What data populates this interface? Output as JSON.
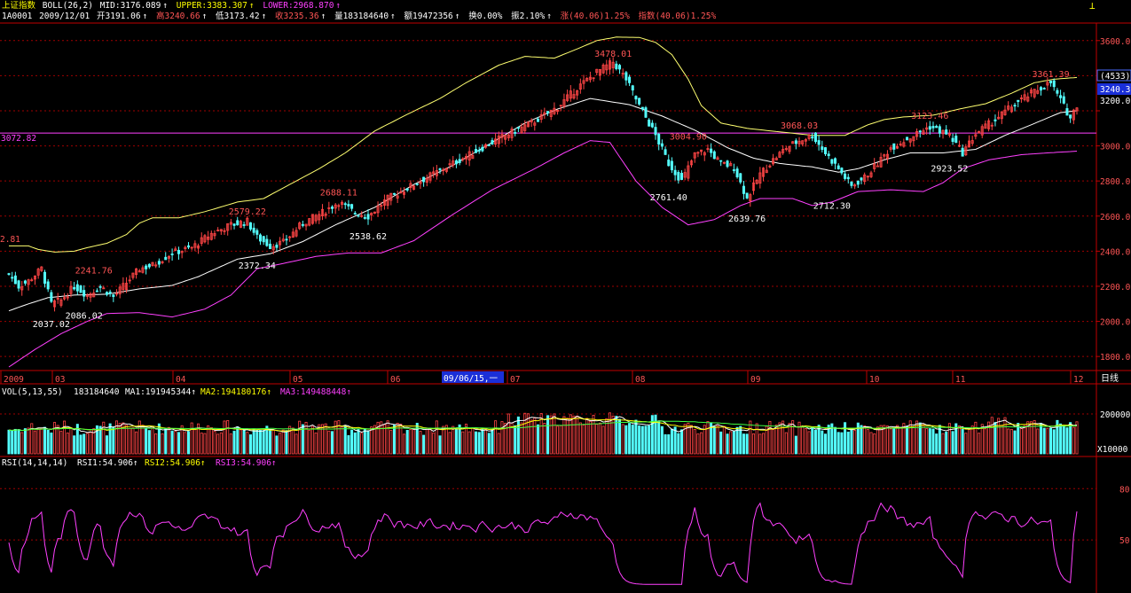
{
  "header": {
    "title": "上证指数",
    "indicator": "BOLL(26,2)",
    "mid": "MID:3176.089",
    "upper": "UPPER:3383.307",
    "lower": "LOWER:2968.870",
    "code": "1A0001",
    "date": "2009/12/01",
    "open": "开3191.06",
    "high": "高3240.66",
    "low": "低3173.42",
    "close": "收3235.36",
    "volume": "量183184640",
    "amount": "额19472356",
    "turnover": "换0.00%",
    "amplitude": "振2.10%",
    "change": "涨(40.06)1.25%",
    "index_change": "指数(40.06)1.25%",
    "up_arrow": "↑",
    "down_arrow": "↓"
  },
  "colors": {
    "background": "#000000",
    "up": "#ff4545",
    "down": "#54ffff",
    "upper_band": "#ffff70",
    "mid_band": "#ffffff",
    "lower_band": "#ff40ff",
    "grid": "#a00000",
    "axis": "#c00000",
    "hline": "#ff40ff",
    "ma1": "#ffffff",
    "ma2": "#ffff00",
    "ma3": "#ff40ff",
    "ma4": "#40ff40"
  },
  "price_axis": {
    "ticks": [
      "3600.00",
      "3400.00",
      "3200.00",
      "3000.00",
      "2800.00",
      "2600.00",
      "2400.00",
      "2200.00",
      "2000.00",
      "1800.00"
    ],
    "boxed_label": "(4533)",
    "current": "3240.33",
    "current_hidden": "3200.00",
    "hline_label": "3072.82",
    "left_cut_label": "2.81"
  },
  "annotations": [
    {
      "text": "2241.76",
      "color": "high"
    },
    {
      "text": "2037.02",
      "color": "low"
    },
    {
      "text": "2086.02",
      "color": "low"
    },
    {
      "text": "2579.22",
      "color": "high"
    },
    {
      "text": "2372.34",
      "color": "low"
    },
    {
      "text": "2688.11",
      "color": "high"
    },
    {
      "text": "2538.62",
      "color": "low"
    },
    {
      "text": "3478.01",
      "color": "high"
    },
    {
      "text": "3004.90",
      "color": "high"
    },
    {
      "text": "2761.40",
      "color": "low"
    },
    {
      "text": "2639.76",
      "color": "low"
    },
    {
      "text": "3068.03",
      "color": "high"
    },
    {
      "text": "2712.30",
      "color": "low"
    },
    {
      "text": "3123.46",
      "color": "high"
    },
    {
      "text": "2923.52",
      "color": "low"
    },
    {
      "text": "3361.39",
      "color": "high"
    }
  ],
  "time_axis": {
    "labels": [
      "2009",
      "03",
      "04",
      "05",
      "06",
      "07",
      "08",
      "09",
      "10",
      "11",
      "12"
    ],
    "cursor_date": "09/06/15,一",
    "period_button": "日线"
  },
  "volume": {
    "header": "VOL(5,13,55)",
    "value": "183184640",
    "ma1": "MA1:191945344",
    "ma2": "MA2:194180176",
    "ma3": "MA3:149488448",
    "axis_label": "200000",
    "unit_label": "X10000"
  },
  "rsi": {
    "header": "RSI(14,14,14)",
    "rsi1": "RSI1:54.906",
    "rsi2": "RSI2:54.906",
    "rsi3": "RSI3:54.906",
    "axis_labels": [
      "80",
      "50"
    ]
  },
  "chart_data": {
    "type": "candlestick",
    "title": "上证指数",
    "ylim": [
      1720,
      3700
    ],
    "band_anchors": {
      "upper": [
        [
          0,
          2430
        ],
        [
          6,
          2430
        ],
        [
          9,
          2410
        ],
        [
          14,
          2395
        ],
        [
          20,
          2400
        ],
        [
          24,
          2420
        ],
        [
          30,
          2445
        ],
        [
          36,
          2495
        ],
        [
          40,
          2560
        ],
        [
          44,
          2590
        ],
        [
          52,
          2590
        ],
        [
          60,
          2625
        ],
        [
          70,
          2680
        ],
        [
          78,
          2700
        ],
        [
          86,
          2780
        ],
        [
          95,
          2870
        ],
        [
          103,
          2960
        ],
        [
          112,
          3085
        ],
        [
          122,
          3180
        ],
        [
          132,
          3270
        ],
        [
          140,
          3360
        ],
        [
          150,
          3460
        ],
        [
          158,
          3510
        ],
        [
          167,
          3500
        ],
        [
          175,
          3560
        ],
        [
          180,
          3600
        ],
        [
          186,
          3620
        ],
        [
          193,
          3618
        ],
        [
          198,
          3590
        ],
        [
          203,
          3520
        ],
        [
          208,
          3380
        ],
        [
          212,
          3230
        ],
        [
          218,
          3130
        ],
        [
          226,
          3100
        ],
        [
          236,
          3080
        ],
        [
          246,
          3060
        ],
        [
          256,
          3060
        ],
        [
          263,
          3120
        ],
        [
          268,
          3150
        ],
        [
          274,
          3165
        ],
        [
          283,
          3175
        ],
        [
          291,
          3210
        ],
        [
          299,
          3240
        ],
        [
          307,
          3300
        ],
        [
          314,
          3360
        ],
        [
          320,
          3380
        ],
        [
          327,
          3390
        ]
      ],
      "mid": [
        [
          0,
          2060
        ],
        [
          6,
          2100
        ],
        [
          12,
          2135
        ],
        [
          20,
          2150
        ],
        [
          30,
          2155
        ],
        [
          40,
          2185
        ],
        [
          50,
          2205
        ],
        [
          58,
          2255
        ],
        [
          70,
          2355
        ],
        [
          80,
          2385
        ],
        [
          90,
          2455
        ],
        [
          100,
          2550
        ],
        [
          112,
          2650
        ],
        [
          124,
          2780
        ],
        [
          136,
          2890
        ],
        [
          148,
          3020
        ],
        [
          158,
          3130
        ],
        [
          168,
          3210
        ],
        [
          178,
          3270
        ],
        [
          190,
          3235
        ],
        [
          200,
          3170
        ],
        [
          210,
          3090
        ],
        [
          220,
          2990
        ],
        [
          228,
          2930
        ],
        [
          236,
          2900
        ],
        [
          246,
          2880
        ],
        [
          254,
          2850
        ],
        [
          260,
          2870
        ],
        [
          268,
          2920
        ],
        [
          276,
          2960
        ],
        [
          286,
          2960
        ],
        [
          296,
          2980
        ],
        [
          305,
          3060
        ],
        [
          313,
          3120
        ],
        [
          322,
          3190
        ],
        [
          327,
          3200
        ]
      ],
      "lower": [
        [
          0,
          1740
        ],
        [
          8,
          1840
        ],
        [
          16,
          1930
        ],
        [
          24,
          2000
        ],
        [
          30,
          2045
        ],
        [
          40,
          2050
        ],
        [
          50,
          2025
        ],
        [
          60,
          2070
        ],
        [
          68,
          2150
        ],
        [
          76,
          2300
        ],
        [
          84,
          2330
        ],
        [
          94,
          2370
        ],
        [
          104,
          2390
        ],
        [
          114,
          2390
        ],
        [
          124,
          2460
        ],
        [
          136,
          2610
        ],
        [
          148,
          2750
        ],
        [
          160,
          2860
        ],
        [
          170,
          2960
        ],
        [
          178,
          3030
        ],
        [
          184,
          3020
        ],
        [
          192,
          2800
        ],
        [
          200,
          2650
        ],
        [
          208,
          2550
        ],
        [
          216,
          2580
        ],
        [
          224,
          2660
        ],
        [
          230,
          2700
        ],
        [
          240,
          2700
        ],
        [
          246,
          2660
        ],
        [
          252,
          2680
        ],
        [
          260,
          2740
        ],
        [
          270,
          2750
        ],
        [
          280,
          2740
        ],
        [
          286,
          2790
        ],
        [
          292,
          2870
        ],
        [
          300,
          2920
        ],
        [
          310,
          2950
        ],
        [
          318,
          2960
        ],
        [
          327,
          2970
        ]
      ]
    },
    "close_anchors": [
      [
        0,
        2270
      ],
      [
        3,
        2200
      ],
      [
        6,
        2230
      ],
      [
        10,
        2300
      ],
      [
        13,
        2100
      ],
      [
        16,
        2120
      ],
      [
        20,
        2200
      ],
      [
        24,
        2150
      ],
      [
        28,
        2200
      ],
      [
        32,
        2140
      ],
      [
        36,
        2220
      ],
      [
        40,
        2300
      ],
      [
        44,
        2320
      ],
      [
        50,
        2390
      ],
      [
        56,
        2420
      ],
      [
        62,
        2500
      ],
      [
        68,
        2550
      ],
      [
        73,
        2570
      ],
      [
        76,
        2480
      ],
      [
        80,
        2430
      ],
      [
        84,
        2450
      ],
      [
        90,
        2560
      ],
      [
        96,
        2620
      ],
      [
        101,
        2680
      ],
      [
        106,
        2620
      ],
      [
        110,
        2600
      ],
      [
        116,
        2700
      ],
      [
        124,
        2780
      ],
      [
        132,
        2860
      ],
      [
        140,
        2940
      ],
      [
        146,
        3000
      ],
      [
        152,
        3060
      ],
      [
        160,
        3130
      ],
      [
        168,
        3220
      ],
      [
        174,
        3330
      ],
      [
        180,
        3420
      ],
      [
        185,
        3478
      ],
      [
        189,
        3380
      ],
      [
        193,
        3230
      ],
      [
        198,
        3060
      ],
      [
        202,
        2900
      ],
      [
        206,
        2800
      ],
      [
        210,
        2950
      ],
      [
        214,
        2980
      ],
      [
        218,
        2900
      ],
      [
        222,
        2880
      ],
      [
        226,
        2700
      ],
      [
        230,
        2840
      ],
      [
        234,
        2920
      ],
      [
        238,
        2990
      ],
      [
        242,
        3030
      ],
      [
        246,
        3060
      ],
      [
        250,
        2960
      ],
      [
        254,
        2870
      ],
      [
        258,
        2770
      ],
      [
        262,
        2820
      ],
      [
        266,
        2900
      ],
      [
        270,
        2990
      ],
      [
        276,
        3050
      ],
      [
        282,
        3110
      ],
      [
        288,
        3060
      ],
      [
        292,
        2960
      ],
      [
        296,
        3070
      ],
      [
        302,
        3150
      ],
      [
        308,
        3240
      ],
      [
        314,
        3310
      ],
      [
        319,
        3361
      ],
      [
        322,
        3260
      ],
      [
        325,
        3160
      ],
      [
        327,
        3235
      ]
    ],
    "volume_range": [
      0,
      280000
    ],
    "rsi_range": [
      20,
      90
    ]
  }
}
